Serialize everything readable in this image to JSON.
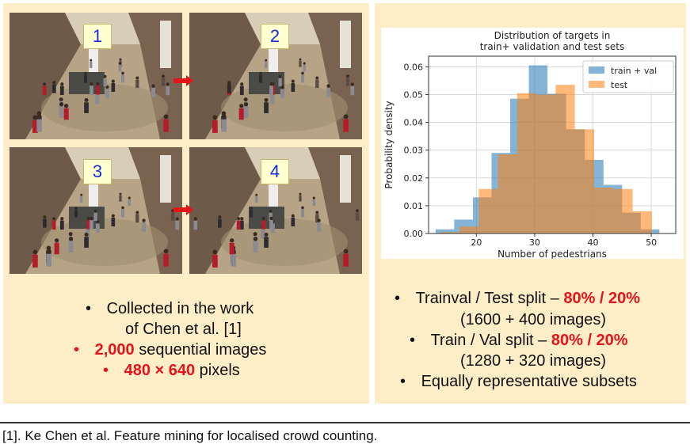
{
  "frames": [
    {
      "label": "1"
    },
    {
      "label": "2"
    },
    {
      "label": "3"
    },
    {
      "label": "4"
    }
  ],
  "left_bullets": [
    {
      "bullet": "•",
      "line1": "Collected in the work",
      "line2": "of Chen et al. [1]"
    },
    {
      "bullet": "•",
      "highlight": "2,000",
      "rest": " sequential images"
    },
    {
      "bullet": "•",
      "highlight": "480 × 640",
      "rest": " pixels"
    }
  ],
  "right_bullets": [
    {
      "bullet": "•",
      "text": "Trainval / Test split – ",
      "highlight": "80% / 20%",
      "sub": "(1600 + 400 images)"
    },
    {
      "bullet": "•",
      "text": "Train / Val split – ",
      "highlight": "80% / 20%",
      "sub": "(1280 + 320 images)"
    },
    {
      "bullet": "•",
      "text": "Equally representative subsets"
    }
  ],
  "footnote": "[1]. Ke Chen et al. Feature mining for localised crowd counting.",
  "chart_data": {
    "type": "bar",
    "title": "Distribution of targets in",
    "title_line2": "train+ validation and test sets",
    "xlabel": "Number of pedestrians",
    "ylabel": "Probability density",
    "xlim": [
      11.8,
      54.2
    ],
    "ylim": [
      0,
      0.0638
    ],
    "xticks": [
      20,
      30,
      40,
      50
    ],
    "yticks": [
      0.0,
      0.01,
      0.02,
      0.03,
      0.04,
      0.05,
      0.06
    ],
    "ytick_labels": [
      "0.00",
      "0.01",
      "0.02",
      "0.03",
      "0.04",
      "0.05",
      "0.06"
    ],
    "grid": true,
    "legend_position": "top-right",
    "colors": {
      "train_val": "#1f77b4",
      "test": "#ff7f0e",
      "overlap": "#c89a78"
    },
    "series": [
      {
        "name": "train + val",
        "bins": [
          13,
          16.2,
          19.4,
          22.6,
          25.8,
          29,
          32.2,
          35.4,
          38.6,
          41.8,
          45,
          48.2,
          51.4
        ],
        "values": [
          0.0015,
          0.005,
          0.013,
          0.029,
          0.0485,
          0.0605,
          0.0503,
          0.0375,
          0.0265,
          0.0175,
          0.0075,
          0.0015
        ]
      },
      {
        "name": "test",
        "bins": [
          13.8,
          17.1,
          20.4,
          23.7,
          27,
          30.3,
          33.6,
          36.9,
          40.2,
          43.5,
          46.8,
          50.1
        ],
        "values": [
          0.0005,
          0.0025,
          0.016,
          0.0285,
          0.0505,
          0.05,
          0.0535,
          0.0375,
          0.0165,
          0.016,
          0.008
        ]
      }
    ]
  }
}
